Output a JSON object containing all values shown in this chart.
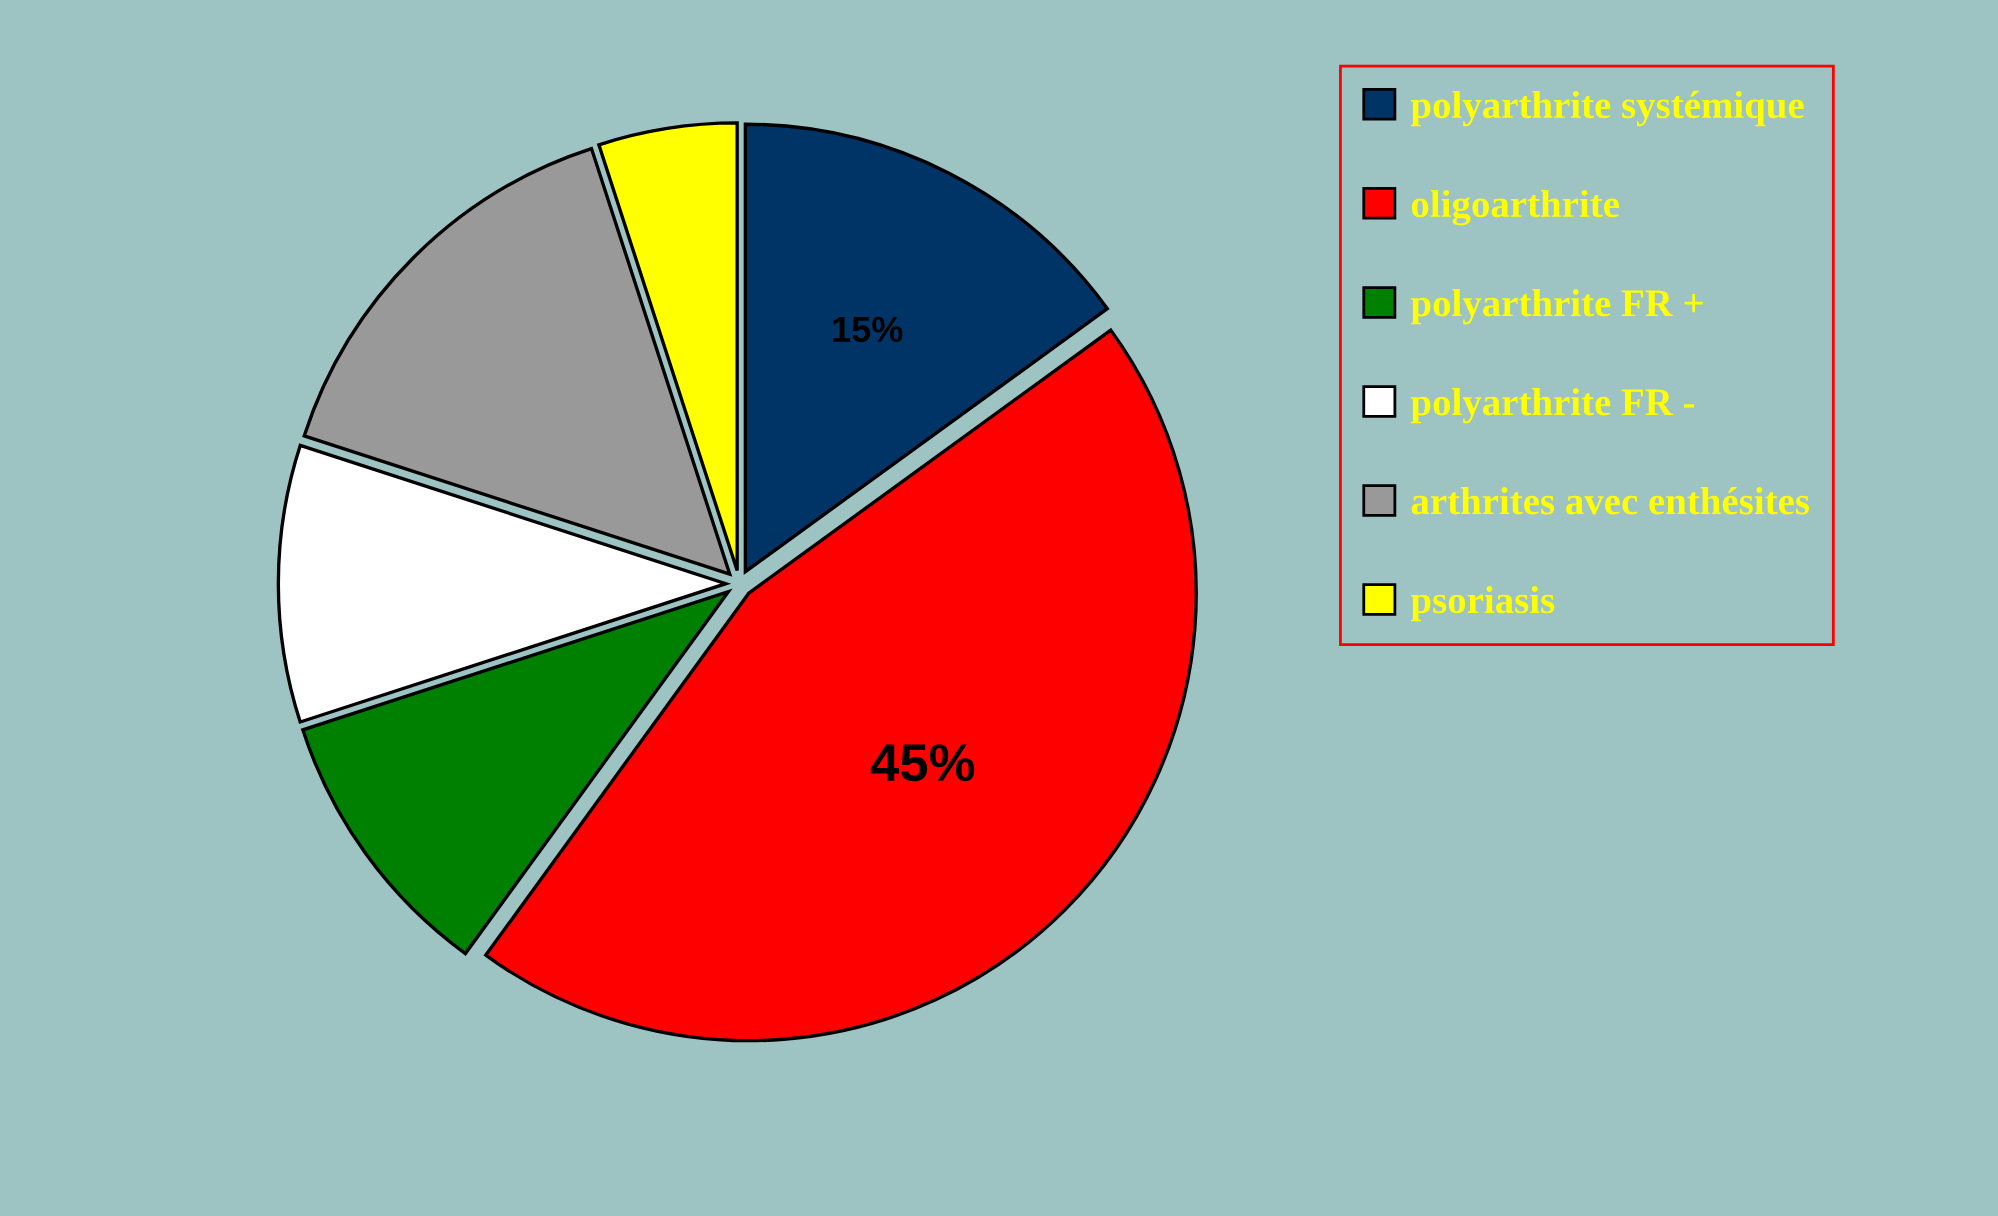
{
  "chart_data": {
    "type": "pie",
    "categories": [
      "polyarthrite systémique",
      "oligoarthrite",
      "polyarthrite FR +",
      "polyarthrite FR -",
      "arthrites avec enthésites",
      "psoriasis"
    ],
    "values": [
      15,
      45,
      10,
      10,
      15,
      5
    ],
    "colors": [
      "#003366",
      "#ff0000",
      "#008000",
      "#ffffff",
      "#999999",
      "#ffff00"
    ],
    "value_labels": [
      "15%",
      "45%",
      null,
      null,
      null,
      null
    ],
    "legend": "right"
  }
}
